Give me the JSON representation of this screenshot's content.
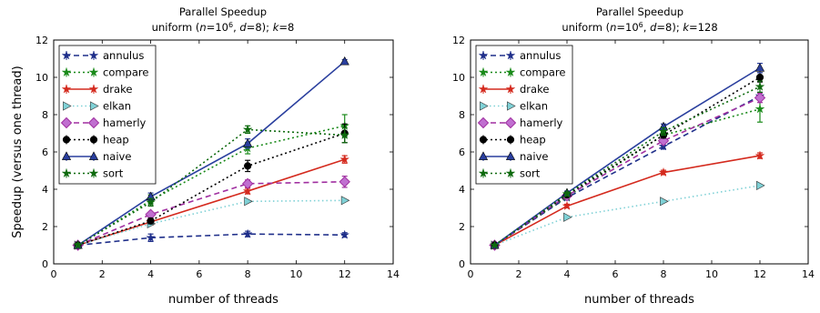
{
  "chart_data": [
    {
      "type": "line",
      "title": "Parallel Speedup",
      "subtitle_parts": [
        "uniform (",
        "n",
        "=10",
        "6",
        ", ",
        "d",
        "=8); ",
        "k",
        "=8"
      ],
      "xlabel": "number of threads",
      "ylabel": "Speedup (versus one thread)",
      "xlim": [
        0,
        14
      ],
      "ylim": [
        0,
        12
      ],
      "xticks": [
        "0",
        "2",
        "4",
        "6",
        "8",
        "10",
        "12",
        "14"
      ],
      "yticks": [
        "0",
        "2",
        "4",
        "6",
        "8",
        "10",
        "12"
      ],
      "grid": false,
      "legend": "top-left",
      "x": [
        1,
        4,
        8,
        12
      ],
      "series": [
        {
          "name": "annulus",
          "values": [
            1.0,
            1.4,
            1.6,
            1.55
          ],
          "err": [
            0.1,
            0.2,
            0.15,
            0.12
          ],
          "color": "#1f2f8a",
          "dash": "6,4",
          "marker": "star"
        },
        {
          "name": "compare",
          "values": [
            1.0,
            3.4,
            6.2,
            7.4
          ],
          "err": [
            0.1,
            0.3,
            0.3,
            0.6
          ],
          "color": "#1a8a1a",
          "dash": "2,3",
          "marker": "star"
        },
        {
          "name": "drake",
          "values": [
            1.0,
            2.25,
            3.9,
            5.6
          ],
          "err": [
            0.05,
            0.1,
            0.15,
            0.2
          ],
          "color": "#d42a1e",
          "dash": "",
          "marker": "star"
        },
        {
          "name": "elkan",
          "values": [
            1.0,
            2.15,
            3.35,
            3.4
          ],
          "err": [
            0,
            0,
            0,
            0
          ],
          "color": "#7fd1d6",
          "dash": "1.5,3",
          "marker": "tri-right"
        },
        {
          "name": "hamerly",
          "values": [
            1.0,
            2.65,
            4.3,
            4.4
          ],
          "err": [
            0,
            0.1,
            0.2,
            0.3
          ],
          "color": "#a02fa0",
          "dash": "6,4",
          "marker": "diamond"
        },
        {
          "name": "heap",
          "values": [
            1.0,
            2.3,
            5.25,
            7.0
          ],
          "err": [
            0.05,
            0.15,
            0.3,
            0.5
          ],
          "color": "#000000",
          "dash": "2,3",
          "marker": "circle"
        },
        {
          "name": "naive",
          "values": [
            1.0,
            3.6,
            6.45,
            10.85
          ],
          "err": [
            0.05,
            0.2,
            0.25,
            0.1
          ],
          "color": "#2a3f9e",
          "dash": "",
          "marker": "triangle"
        },
        {
          "name": "sort",
          "values": [
            1.0,
            3.3,
            7.2,
            6.9
          ],
          "err": [
            0.1,
            0.2,
            0.2,
            0.4
          ],
          "color": "#0e6a0e",
          "dash": "2,3",
          "marker": "star"
        }
      ]
    },
    {
      "type": "line",
      "title": "Parallel Speedup",
      "subtitle_parts": [
        "uniform (",
        "n",
        "=10",
        "6",
        ", ",
        "d",
        "=8); ",
        "k",
        "=128"
      ],
      "xlabel": "number of threads",
      "ylabel": "",
      "xlim": [
        0,
        14
      ],
      "ylim": [
        0,
        12
      ],
      "xticks": [
        "0",
        "2",
        "4",
        "6",
        "8",
        "10",
        "12",
        "14"
      ],
      "yticks": [
        "0",
        "2",
        "4",
        "6",
        "8",
        "10",
        "12"
      ],
      "grid": false,
      "legend": "top-left",
      "x": [
        1,
        4,
        8,
        12
      ],
      "series": [
        {
          "name": "annulus",
          "values": [
            1.0,
            3.55,
            6.3,
            9.0
          ],
          "err": [
            0.05,
            0.1,
            0.15,
            0.2
          ],
          "color": "#1f2f8a",
          "dash": "6,4",
          "marker": "star"
        },
        {
          "name": "compare",
          "values": [
            1.0,
            3.6,
            6.9,
            8.3
          ],
          "err": [
            0.05,
            0.1,
            0.2,
            0.7
          ],
          "color": "#1a8a1a",
          "dash": "2,3",
          "marker": "star"
        },
        {
          "name": "drake",
          "values": [
            1.0,
            3.1,
            4.9,
            5.8
          ],
          "err": [
            0.05,
            0.1,
            0.12,
            0.15
          ],
          "color": "#d42a1e",
          "dash": "",
          "marker": "star"
        },
        {
          "name": "elkan",
          "values": [
            1.0,
            2.5,
            3.35,
            4.2
          ],
          "err": [
            0,
            0,
            0,
            0
          ],
          "color": "#7fd1d6",
          "dash": "1.5,3",
          "marker": "tri-right"
        },
        {
          "name": "hamerly",
          "values": [
            1.0,
            3.65,
            6.6,
            8.9
          ],
          "err": [
            0.05,
            0.1,
            0.15,
            0.25
          ],
          "color": "#a02fa0",
          "dash": "6,4",
          "marker": "diamond"
        },
        {
          "name": "heap",
          "values": [
            1.0,
            3.7,
            6.9,
            10.0
          ],
          "err": [
            0.05,
            0.1,
            0.15,
            0.25
          ],
          "color": "#000000",
          "dash": "2,3",
          "marker": "circle"
        },
        {
          "name": "naive",
          "values": [
            1.0,
            3.8,
            7.35,
            10.5
          ],
          "err": [
            0.05,
            0.1,
            0.15,
            0.25
          ],
          "color": "#2a3f9e",
          "dash": "",
          "marker": "triangle"
        },
        {
          "name": "sort",
          "values": [
            1.0,
            3.75,
            7.1,
            9.5
          ],
          "err": [
            0.05,
            0.1,
            0.2,
            0.3
          ],
          "color": "#0e6a0e",
          "dash": "2,3",
          "marker": "star"
        }
      ]
    }
  ]
}
